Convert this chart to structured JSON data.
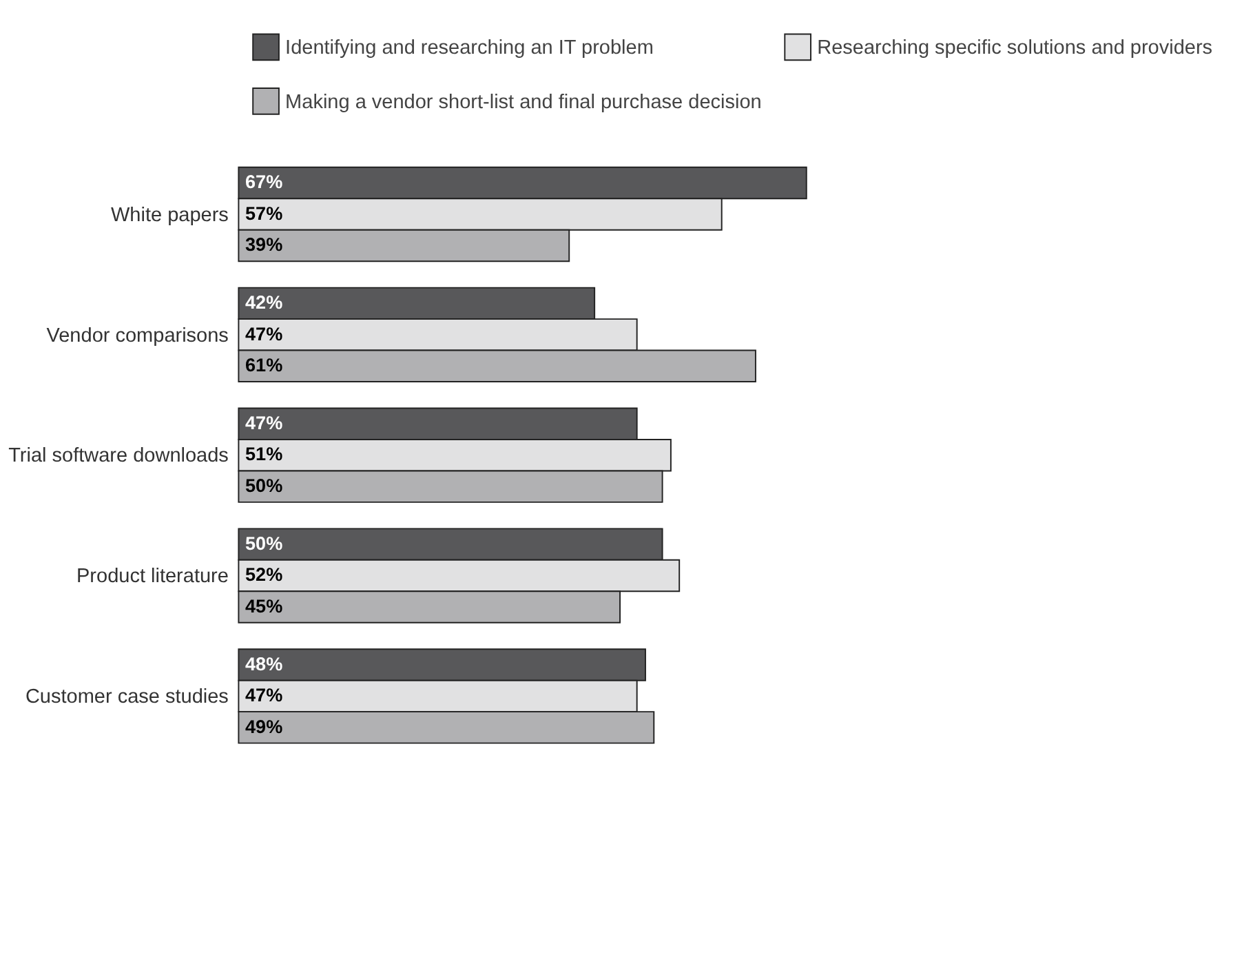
{
  "chart_data": {
    "type": "bar",
    "orientation": "horizontal",
    "data_labels": true,
    "legend": "top",
    "grid": false,
    "categories": [
      "White papers",
      "Vendor comparisons",
      "Trial software downloads",
      "Product literature",
      "Customer case studies"
    ],
    "series": [
      {
        "name": "Identifying and researching an IT problem",
        "color": "#58585a",
        "values": [
          67,
          42,
          47,
          50,
          48
        ],
        "value_labels": [
          "67%",
          "42%",
          "47%",
          "50%",
          "48%"
        ]
      },
      {
        "name": "Researching specific solutions and providers",
        "color": "#e1e1e2",
        "values": [
          57,
          47,
          51,
          52,
          47
        ],
        "value_labels": [
          "57%",
          "47%",
          "51%",
          "52%",
          "47%"
        ]
      },
      {
        "name": "Making a vendor short-list and final purchase decision",
        "color": "#b1b1b3",
        "values": [
          39,
          61,
          50,
          45,
          49
        ],
        "value_labels": [
          "39%",
          "61%",
          "50%",
          "45%",
          "49%"
        ]
      }
    ]
  }
}
